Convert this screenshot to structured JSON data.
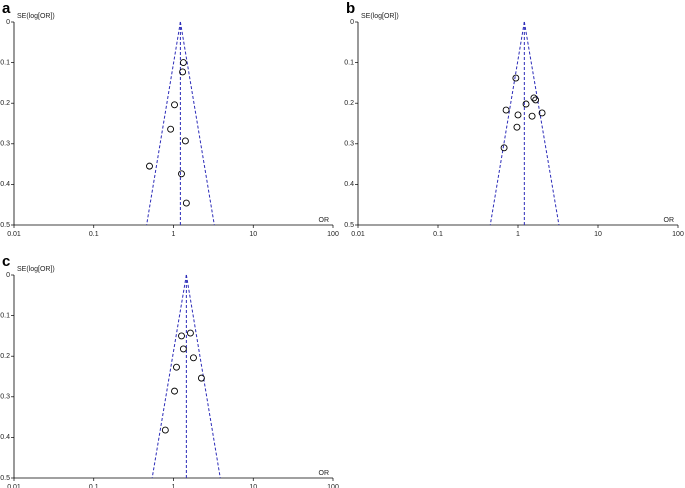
{
  "chart_data": [
    {
      "type": "scatter",
      "panel": "a",
      "y_label": "SE(log[OR])",
      "x_label": "OR",
      "x": [
        1.33,
        1.3,
        1.03,
        0.92,
        1.41,
        0.5,
        1.26,
        1.45
      ],
      "y": [
        0.1,
        0.123,
        0.204,
        0.264,
        0.293,
        0.355,
        0.374,
        0.446
      ],
      "xlim": [
        0.01,
        100
      ],
      "ylim": [
        0,
        0.5
      ],
      "y_inverted": true,
      "log_x": true,
      "xticks": [
        0.01,
        0.1,
        1,
        10,
        100
      ],
      "yticks": [
        0,
        0.1,
        0.2,
        0.3,
        0.4,
        0.5
      ],
      "reference_line": 1.22,
      "funnel_base": [
        0.46,
        3.25
      ],
      "color": "#000000",
      "funnel_color": "#2b2bb8"
    },
    {
      "type": "scatter",
      "panel": "b",
      "y_label": "SE(log[OR])",
      "x_label": "OR",
      "x": [
        0.94,
        0.71,
        1.26,
        1.58,
        1.66,
        1.0,
        1.5,
        2.0,
        0.97,
        0.67
      ],
      "y": [
        0.138,
        0.217,
        0.202,
        0.187,
        0.192,
        0.229,
        0.232,
        0.224,
        0.259,
        0.31
      ],
      "xlim": [
        0.01,
        100
      ],
      "ylim": [
        0,
        0.5
      ],
      "y_inverted": true,
      "log_x": true,
      "xticks": [
        0.01,
        0.1,
        1,
        10,
        100
      ],
      "yticks": [
        0,
        0.1,
        0.2,
        0.3,
        0.4,
        0.5
      ],
      "reference_line": 1.2,
      "funnel_base": [
        0.45,
        3.25
      ],
      "color": "#000000",
      "funnel_color": "#2b2bb8"
    },
    {
      "type": "scatter",
      "panel": "c",
      "y_label": "SE(log[OR])",
      "x_label": "OR",
      "x": [
        1.26,
        1.63,
        1.33,
        1.78,
        1.09,
        2.24,
        1.03,
        0.79
      ],
      "y": [
        0.15,
        0.143,
        0.182,
        0.204,
        0.227,
        0.254,
        0.286,
        0.382
      ],
      "xlim": [
        0.01,
        100
      ],
      "ylim": [
        0,
        0.5
      ],
      "y_inverted": true,
      "log_x": true,
      "xticks": [
        0.01,
        0.1,
        1,
        10,
        100
      ],
      "yticks": [
        0,
        0.1,
        0.2,
        0.3,
        0.4,
        0.5
      ],
      "reference_line": 1.45,
      "funnel_base": [
        0.54,
        3.86
      ],
      "color": "#000000",
      "funnel_color": "#2b2bb8"
    }
  ]
}
